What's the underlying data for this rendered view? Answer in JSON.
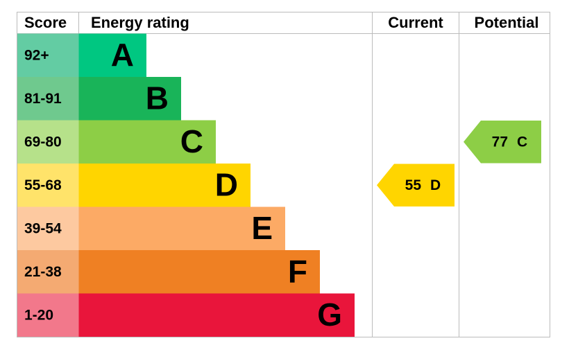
{
  "chart_data": {
    "type": "epc",
    "headers": {
      "score": "Score",
      "rating": "Energy rating",
      "current": "Current",
      "potential": "Potential"
    },
    "bands": [
      {
        "score": "92+",
        "letter": "A",
        "color": "#00c781",
        "score_color": "#63cca3"
      },
      {
        "score": "81-91",
        "letter": "B",
        "color": "#19b459",
        "score_color": "#6fc98e"
      },
      {
        "score": "69-80",
        "letter": "C",
        "color": "#8dce46",
        "score_color": "#b6e18a"
      },
      {
        "score": "55-68",
        "letter": "D",
        "color": "#ffd500",
        "score_color": "#ffe36a"
      },
      {
        "score": "39-54",
        "letter": "E",
        "color": "#fcaa65",
        "score_color": "#fdc9a0"
      },
      {
        "score": "21-38",
        "letter": "F",
        "color": "#ef8023",
        "score_color": "#f4aa72"
      },
      {
        "score": "1-20",
        "letter": "G",
        "color": "#e9153b",
        "score_color": "#f2788b"
      }
    ],
    "current": {
      "value": 55,
      "rating": "D"
    },
    "potential": {
      "value": 77,
      "rating": "C"
    }
  }
}
